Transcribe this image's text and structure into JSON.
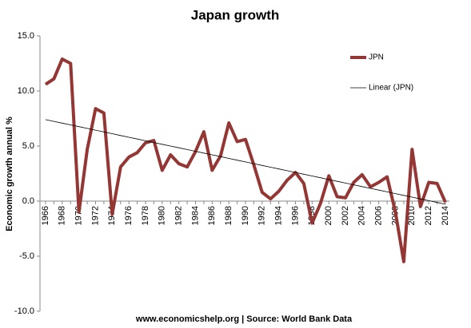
{
  "chart_data": {
    "type": "line",
    "title": "Japan growth",
    "y_label": "Economic growth annual %",
    "source": "www.economicshelp.org | Source: World Bank Data",
    "categories": [
      "1966",
      null,
      "1968",
      null,
      "1970",
      null,
      "1972",
      null,
      "1974",
      null,
      "1976",
      null,
      "1978",
      null,
      "1980",
      null,
      "1982",
      null,
      "1984",
      null,
      "1986",
      null,
      "1988",
      null,
      "1990",
      null,
      "1992",
      null,
      "1994",
      null,
      "1996",
      null,
      "1998",
      null,
      "2000",
      null,
      "2002",
      null,
      "2004",
      null,
      "2006",
      null,
      "2008",
      null,
      "2010",
      null,
      "2012",
      null,
      "2014"
    ],
    "series": [
      {
        "name": "JPN",
        "color": "#943634",
        "width": 4,
        "values": [
          10.6,
          11.1,
          12.9,
          12.5,
          -1.0,
          4.7,
          8.4,
          8.0,
          -1.2,
          3.1,
          4.0,
          4.4,
          5.3,
          5.5,
          2.8,
          4.2,
          3.4,
          3.1,
          4.5,
          6.3,
          2.8,
          4.1,
          7.1,
          5.4,
          5.6,
          3.3,
          0.8,
          0.2,
          0.9,
          1.9,
          2.6,
          1.6,
          -2.0,
          -0.2,
          2.3,
          0.4,
          0.3,
          1.7,
          2.4,
          1.3,
          1.7,
          2.2,
          -1.0,
          -5.5,
          4.7,
          -0.5,
          1.7,
          1.6,
          -0.1
        ]
      },
      {
        "name": "Linear (JPN)",
        "color": "#000000",
        "width": 0.8,
        "values": [
          7.4,
          7.24,
          7.08,
          6.92,
          6.76,
          6.6,
          6.44,
          6.28,
          6.12,
          5.96,
          5.8,
          5.64,
          5.48,
          5.32,
          5.16,
          5,
          4.84,
          4.68,
          4.52,
          4.36,
          4.2,
          4.04,
          3.88,
          3.72,
          3.56,
          3.4,
          3.24,
          3.08,
          2.92,
          2.76,
          2.6,
          2.44,
          2.28,
          2.12,
          1.96,
          1.8,
          1.64,
          1.48,
          1.32,
          1.16,
          1,
          0.84,
          0.68,
          0.52,
          0.36,
          0.2,
          0.04,
          -0.12,
          -0.28
        ]
      }
    ],
    "ylim": [
      -10,
      15
    ],
    "yticks": [
      {
        "value": -10,
        "label": "-10.0"
      },
      {
        "value": -5,
        "label": "-5.0"
      },
      {
        "value": 0,
        "label": "0.0"
      },
      {
        "value": 5,
        "label": "5.0"
      },
      {
        "value": 10,
        "label": "10.0"
      },
      {
        "value": 15,
        "label": "15.0"
      }
    ],
    "grid": false,
    "legend": "right"
  }
}
